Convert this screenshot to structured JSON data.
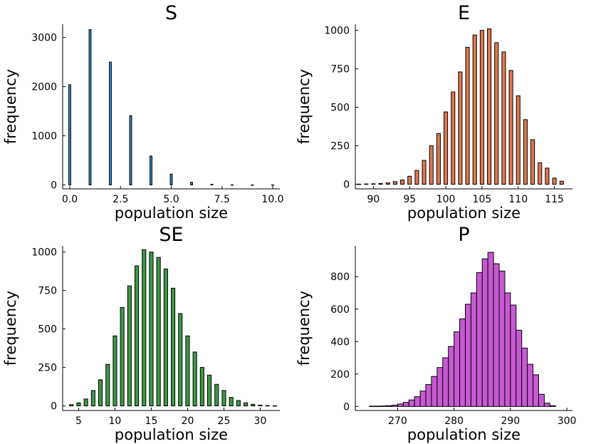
{
  "chart_data": [
    {
      "type": "bar",
      "title": "S",
      "xlabel": "population size",
      "ylabel": "frequency",
      "color": "#2b8fd6",
      "xlim": [
        -0.35,
        10.35
      ],
      "ylim": [
        -80,
        3270
      ],
      "xticks": [
        0,
        2.5,
        5,
        7.5,
        10
      ],
      "xtick_labels": [
        "0.0",
        "2.5",
        "5.0",
        "7.5",
        "10.0"
      ],
      "yticks": [
        0,
        1000,
        2000,
        3000
      ],
      "ytick_labels": [
        "0",
        "1000",
        "2000",
        "3000"
      ],
      "bin_width": 0.1,
      "x": [
        0,
        1,
        2,
        3,
        4,
        5,
        6,
        7,
        8,
        9,
        10
      ],
      "values": [
        2040,
        3160,
        2500,
        1410,
        590,
        220,
        55,
        12,
        3,
        1,
        1
      ]
    },
    {
      "type": "bar",
      "title": "E",
      "xlabel": "population size",
      "ylabel": "frequency",
      "color": "#e0794e",
      "xlim": [
        87.5,
        117.5
      ],
      "ylim": [
        -30,
        1040
      ],
      "xticks": [
        90,
        95,
        100,
        105,
        110,
        115
      ],
      "xtick_labels": [
        "90",
        "95",
        "100",
        "105",
        "110",
        "115"
      ],
      "yticks": [
        0,
        250,
        500,
        750,
        1000
      ],
      "ytick_labels": [
        "0",
        "250",
        "500",
        "750",
        "1000"
      ],
      "bin_width": 0.5,
      "x": [
        88,
        89,
        90,
        91,
        92,
        93,
        94,
        95,
        96,
        97,
        98,
        99,
        100,
        101,
        102,
        103,
        104,
        105,
        106,
        107,
        108,
        109,
        110,
        111,
        112,
        113,
        114,
        115,
        116
      ],
      "values": [
        1,
        2,
        3,
        5,
        9,
        17,
        28,
        52,
        90,
        155,
        250,
        330,
        470,
        600,
        730,
        890,
        970,
        1000,
        1010,
        920,
        860,
        740,
        575,
        420,
        290,
        140,
        105,
        40,
        20
      ]
    },
    {
      "type": "bar",
      "title": "SE",
      "xlabel": "population size",
      "ylabel": "frequency",
      "color": "#3c9a46",
      "xlim": [
        2.8,
        32.7
      ],
      "ylim": [
        -30,
        1040
      ],
      "xticks": [
        5,
        10,
        15,
        20,
        25,
        30
      ],
      "xtick_labels": [
        "5",
        "10",
        "15",
        "20",
        "25",
        "30"
      ],
      "yticks": [
        0,
        250,
        500,
        750,
        1000
      ],
      "ytick_labels": [
        "0",
        "250",
        "500",
        "750",
        "1000"
      ],
      "bin_width": 0.5,
      "x": [
        4,
        5,
        6,
        7,
        8,
        9,
        10,
        11,
        12,
        13,
        14,
        15,
        16,
        17,
        18,
        19,
        20,
        21,
        22,
        23,
        24,
        25,
        26,
        27,
        28,
        29,
        30,
        31,
        32
      ],
      "values": [
        8,
        20,
        45,
        100,
        170,
        270,
        455,
        640,
        780,
        910,
        1015,
        1000,
        965,
        890,
        765,
        600,
        455,
        350,
        250,
        200,
        140,
        100,
        55,
        35,
        20,
        10,
        5,
        2,
        1
      ]
    },
    {
      "type": "bar",
      "title": "P",
      "xlabel": "population size",
      "ylabel": "frequency",
      "color": "#c75ad2",
      "xlim": [
        262.5,
        301
      ],
      "ylim": [
        -25,
        990
      ],
      "xticks": [
        270,
        280,
        290,
        300
      ],
      "xtick_labels": [
        "270",
        "280",
        "290",
        "300"
      ],
      "yticks": [
        0,
        200,
        400,
        600,
        800
      ],
      "ytick_labels": [
        "0",
        "200",
        "400",
        "600",
        "800"
      ],
      "bin_width": 1,
      "x": [
        265.5,
        266.5,
        267.5,
        268.5,
        269.5,
        270.5,
        271.5,
        272.5,
        273.5,
        274.5,
        275.5,
        276.5,
        277.5,
        278.5,
        279.5,
        280.5,
        281.5,
        282.5,
        283.5,
        284.5,
        285.5,
        286.5,
        287.5,
        288.5,
        289.5,
        290.5,
        291.5,
        292.5,
        293.5,
        294.5,
        295.5,
        296.5,
        297.5
      ],
      "values": [
        2,
        2,
        3,
        5,
        8,
        15,
        25,
        40,
        60,
        95,
        135,
        185,
        240,
        300,
        370,
        460,
        540,
        630,
        700,
        825,
        910,
        950,
        880,
        835,
        700,
        625,
        470,
        360,
        260,
        195,
        75,
        20,
        5
      ]
    }
  ]
}
